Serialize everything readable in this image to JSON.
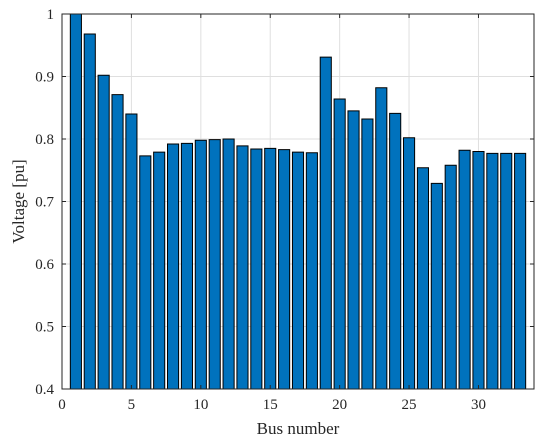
{
  "chart_data": {
    "type": "bar",
    "title": "",
    "xlabel": "Bus number",
    "ylabel": "Voltage [pu]",
    "xlim": [
      0,
      34
    ],
    "ylim": [
      0.4,
      1
    ],
    "xticks": [
      0,
      5,
      10,
      15,
      20,
      25,
      30
    ],
    "yticks": [
      0.4,
      0.5,
      0.6,
      0.7,
      0.8,
      0.9,
      1
    ],
    "ytick_labels": [
      "0.4",
      "0.5",
      "0.6",
      "0.7",
      "0.8",
      "0.9",
      "1"
    ],
    "grid": true,
    "bar_color": "#0072BD",
    "edge_color": "#000000",
    "categories": [
      1,
      2,
      3,
      4,
      5,
      6,
      7,
      8,
      9,
      10,
      11,
      12,
      13,
      14,
      15,
      16,
      17,
      18,
      19,
      20,
      21,
      22,
      23,
      24,
      25,
      26,
      27,
      28,
      29,
      30,
      31,
      32,
      33
    ],
    "values": [
      1.0,
      0.968,
      0.902,
      0.871,
      0.84,
      0.773,
      0.779,
      0.792,
      0.793,
      0.798,
      0.799,
      0.8,
      0.789,
      0.784,
      0.785,
      0.783,
      0.779,
      0.778,
      0.931,
      0.864,
      0.845,
      0.832,
      0.882,
      0.841,
      0.802,
      0.754,
      0.729,
      0.758,
      0.782,
      0.78,
      0.777,
      0.777,
      0.777
    ]
  }
}
